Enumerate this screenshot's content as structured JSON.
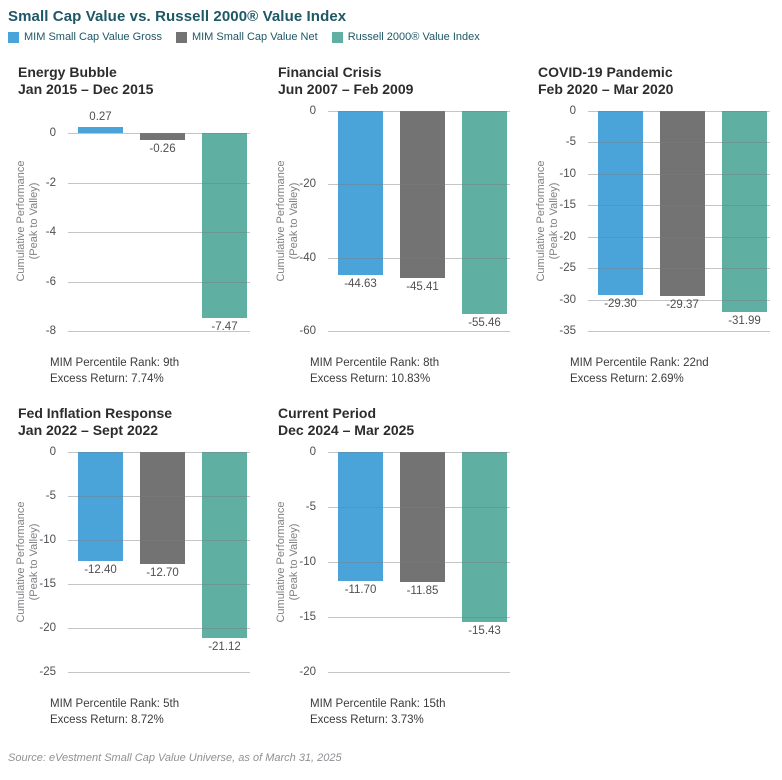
{
  "page": {
    "title": "Small Cap Value vs. Russell 2000® Value Index",
    "source": "Source: eVestment Small Cap Value Universe, as of March 31, 2025"
  },
  "colors": {
    "gross_blue": "#4AA3D9",
    "net_gray": "#747373",
    "index_teal": "#5FAFA3",
    "heading_teal": "#1D5866",
    "gridline_gray": "#C4C5C7"
  },
  "chart_data": {
    "type": "bar",
    "ylabel": "Cumulative Performance\n(Peak to Valley)",
    "legend_position": "top-left",
    "grid": true,
    "series": [
      {
        "key": "gross",
        "name": "MIM Small Cap Value Gross",
        "color": "#4AA3D9"
      },
      {
        "key": "net",
        "name": "MIM Small Cap Value Net",
        "color": "#747373"
      },
      {
        "key": "index",
        "name": "Russell 2000® Value Index",
        "color": "#5FAFA3"
      }
    ],
    "charts": [
      {
        "title": "Energy Bubble",
        "subtitle": "Jan 2015 – Dec 2015",
        "values": [
          0.27,
          -0.26,
          -7.47
        ],
        "value_labels": [
          "0.27",
          "-0.26",
          "-7.47"
        ],
        "yticks": [
          0,
          -2,
          -4,
          -6,
          -8
        ],
        "ymax": 0.9,
        "ymin": -8,
        "note_rank": "MIM Percentile Rank: 9th",
        "note_excess": "Excess Return: 7.74%"
      },
      {
        "title": "Financial Crisis",
        "subtitle": "Jun 2007 – Feb 2009",
        "values": [
          -44.63,
          -45.41,
          -55.46
        ],
        "value_labels": [
          "-44.63",
          "-45.41",
          "-55.46"
        ],
        "yticks": [
          0,
          -20,
          -40,
          -60
        ],
        "ymax": 0,
        "ymin": -60,
        "note_rank": "MIM Percentile Rank: 8th",
        "note_excess": "Excess Return: 10.83%"
      },
      {
        "title": "COVID-19 Pandemic",
        "subtitle": "Feb 2020 – Mar 2020",
        "values": [
          -29.3,
          -29.37,
          -31.99
        ],
        "value_labels": [
          "-29.30",
          "-29.37",
          "-31.99"
        ],
        "yticks": [
          0,
          -5,
          -10,
          -15,
          -20,
          -25,
          -30,
          -35
        ],
        "ymax": 0,
        "ymin": -35,
        "note_rank": "MIM Percentile Rank: 22nd",
        "note_excess": "Excess Return: 2.69%"
      },
      {
        "title": "Fed Inflation Response",
        "subtitle": "Jan 2022 – Sept 2022",
        "values": [
          -12.4,
          -12.7,
          -21.12
        ],
        "value_labels": [
          "-12.40",
          "-12.70",
          "-21.12"
        ],
        "yticks": [
          0,
          -5,
          -10,
          -15,
          -20,
          -25
        ],
        "ymax": 0,
        "ymin": -25,
        "note_rank": "MIM Percentile Rank: 5th",
        "note_excess": "Excess Return: 8.72%"
      },
      {
        "title": "Current Period",
        "subtitle": "Dec 2024 – Mar 2025",
        "values": [
          -11.7,
          -11.85,
          -15.43
        ],
        "value_labels": [
          "-11.70",
          "-11.85",
          "-15.43"
        ],
        "yticks": [
          0,
          -5,
          -10,
          -15,
          -20
        ],
        "ymax": 0,
        "ymin": -20,
        "note_rank": "MIM Percentile Rank: 15th",
        "note_excess": "Excess Return: 3.73%"
      }
    ]
  }
}
